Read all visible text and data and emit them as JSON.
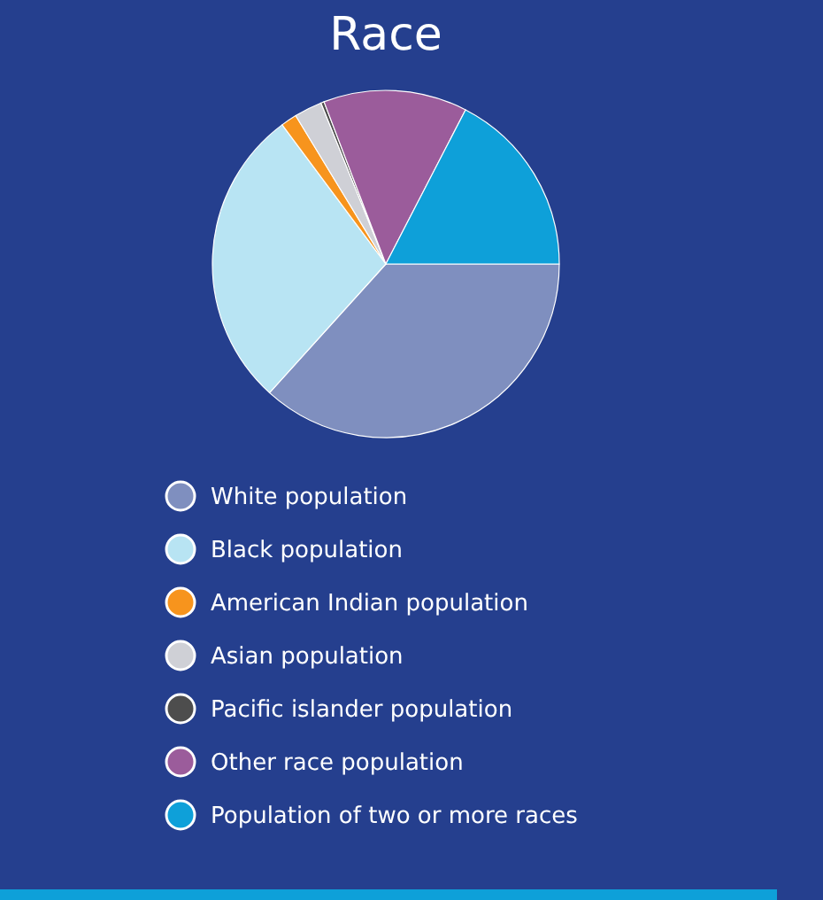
{
  "chart_data": {
    "type": "pie",
    "title": "Race",
    "categories": [
      "White population",
      "Black population",
      "American Indian population",
      "Asian population",
      "Pacific islander population",
      "Other race population",
      "Population of two or more races"
    ],
    "values": [
      36.7,
      28.1,
      1.5,
      2.6,
      0.3,
      13.4,
      17.4
    ],
    "colors": [
      "#7f8fbf",
      "#b8e4f3",
      "#f7941d",
      "#cfd0d6",
      "#4d4d4d",
      "#9b5c9b",
      "#0ea0d9"
    ],
    "legend": "bottom"
  }
}
